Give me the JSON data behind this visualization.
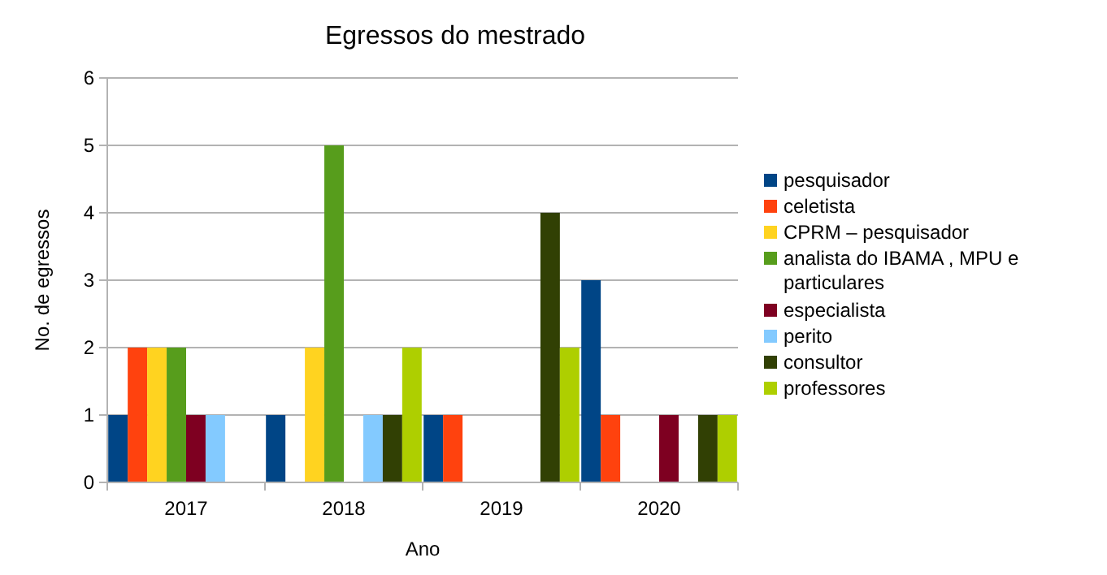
{
  "chart_data": {
    "type": "bar",
    "title": "Egressos do mestrado",
    "xlabel": "Ano",
    "ylabel": "No. de egressos",
    "categories": [
      "2017",
      "2018",
      "2019",
      "2020"
    ],
    "series": [
      {
        "name": "pesquisador",
        "color": "#004586",
        "values": [
          1,
          1,
          1,
          3
        ]
      },
      {
        "name": "celetista",
        "color": "#ff420e",
        "values": [
          2,
          0,
          1,
          1
        ]
      },
      {
        "name": "CPRM – pesquisador",
        "color": "#ffd320",
        "values": [
          2,
          2,
          0,
          0
        ]
      },
      {
        "name": "analista do IBAMA , MPU e particulares",
        "color": "#579d1c",
        "values": [
          2,
          5,
          0,
          0
        ]
      },
      {
        "name": "especialista",
        "color": "#7e0021",
        "values": [
          1,
          0,
          0,
          1
        ]
      },
      {
        "name": "perito",
        "color": "#83caff",
        "values": [
          1,
          1,
          0,
          0
        ]
      },
      {
        "name": "consultor",
        "color": "#314004",
        "values": [
          0,
          1,
          4,
          1
        ]
      },
      {
        "name": "professores",
        "color": "#aecf00",
        "values": [
          0,
          2,
          2,
          1
        ]
      }
    ],
    "ylim": [
      0,
      6
    ],
    "yticks": [
      0,
      1,
      2,
      3,
      4,
      5,
      6
    ],
    "grid": "y",
    "legend": "right"
  }
}
